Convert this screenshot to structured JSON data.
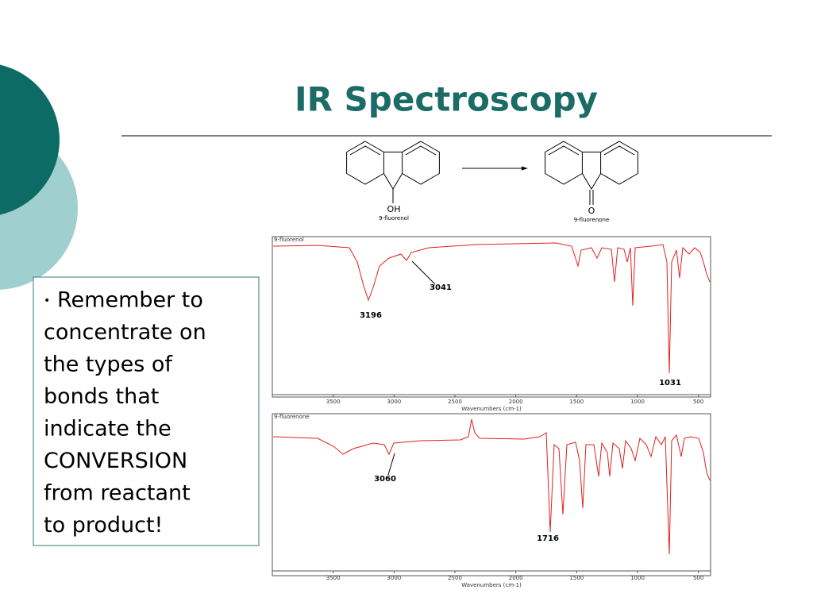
{
  "header": {
    "title": "IR Spectroscopy"
  },
  "bullet": {
    "lines": [
      "Remember to",
      "concentrate on",
      "the types of",
      "bonds that",
      "indicate the",
      "CONVERSION",
      "from reactant",
      "to product!"
    ]
  },
  "reaction": {
    "reactant": {
      "group": "OH",
      "name": "9-fluorenol"
    },
    "product": {
      "group": "O",
      "name": "9-fluorenone"
    }
  },
  "spectra": [
    {
      "label": "9-fluorenol",
      "xlim": [
        4000,
        400
      ],
      "xticks": [
        3500,
        3000,
        2500,
        2000,
        1500,
        1000,
        500
      ],
      "xlabel": "Wavenumbers (cm-1)",
      "peaks": [
        3196,
        3041,
        1031
      ]
    },
    {
      "label": "9-fluorenone",
      "xlim": [
        4000,
        400
      ],
      "xticks": [
        3500,
        3000,
        2500,
        2000,
        1500,
        1000,
        500
      ],
      "xlabel": "Wavenumbers (cm-1)",
      "peaks": [
        3060,
        1716
      ]
    }
  ]
}
